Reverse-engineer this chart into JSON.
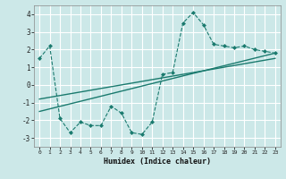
{
  "title": "",
  "xlabel": "Humidex (Indice chaleur)",
  "ylabel": "",
  "background_color": "#cce8e8",
  "grid_color": "#ffffff",
  "line_color": "#1a7a6e",
  "x_data": [
    0,
    1,
    2,
    3,
    4,
    5,
    6,
    7,
    8,
    9,
    10,
    11,
    12,
    13,
    14,
    15,
    16,
    17,
    18,
    19,
    20,
    21,
    22,
    23
  ],
  "y_data": [
    1.5,
    2.2,
    -1.9,
    -2.7,
    -2.1,
    -2.3,
    -2.3,
    -1.2,
    -1.6,
    -2.7,
    -2.8,
    -2.1,
    0.6,
    0.7,
    3.5,
    4.1,
    3.4,
    2.3,
    2.2,
    2.1,
    2.2,
    2.0,
    1.9,
    1.8
  ],
  "reg_line1_x": [
    0,
    23
  ],
  "reg_line1_y": [
    -1.5,
    1.8
  ],
  "reg_line2_x": [
    0,
    23
  ],
  "reg_line2_y": [
    -0.8,
    1.5
  ],
  "xlim": [
    -0.5,
    23.5
  ],
  "ylim": [
    -3.5,
    4.5
  ],
  "yticks": [
    -3,
    -2,
    -1,
    0,
    1,
    2,
    3,
    4
  ],
  "xticks": [
    0,
    1,
    2,
    3,
    4,
    5,
    6,
    7,
    8,
    9,
    10,
    11,
    12,
    13,
    14,
    15,
    16,
    17,
    18,
    19,
    20,
    21,
    22,
    23
  ]
}
